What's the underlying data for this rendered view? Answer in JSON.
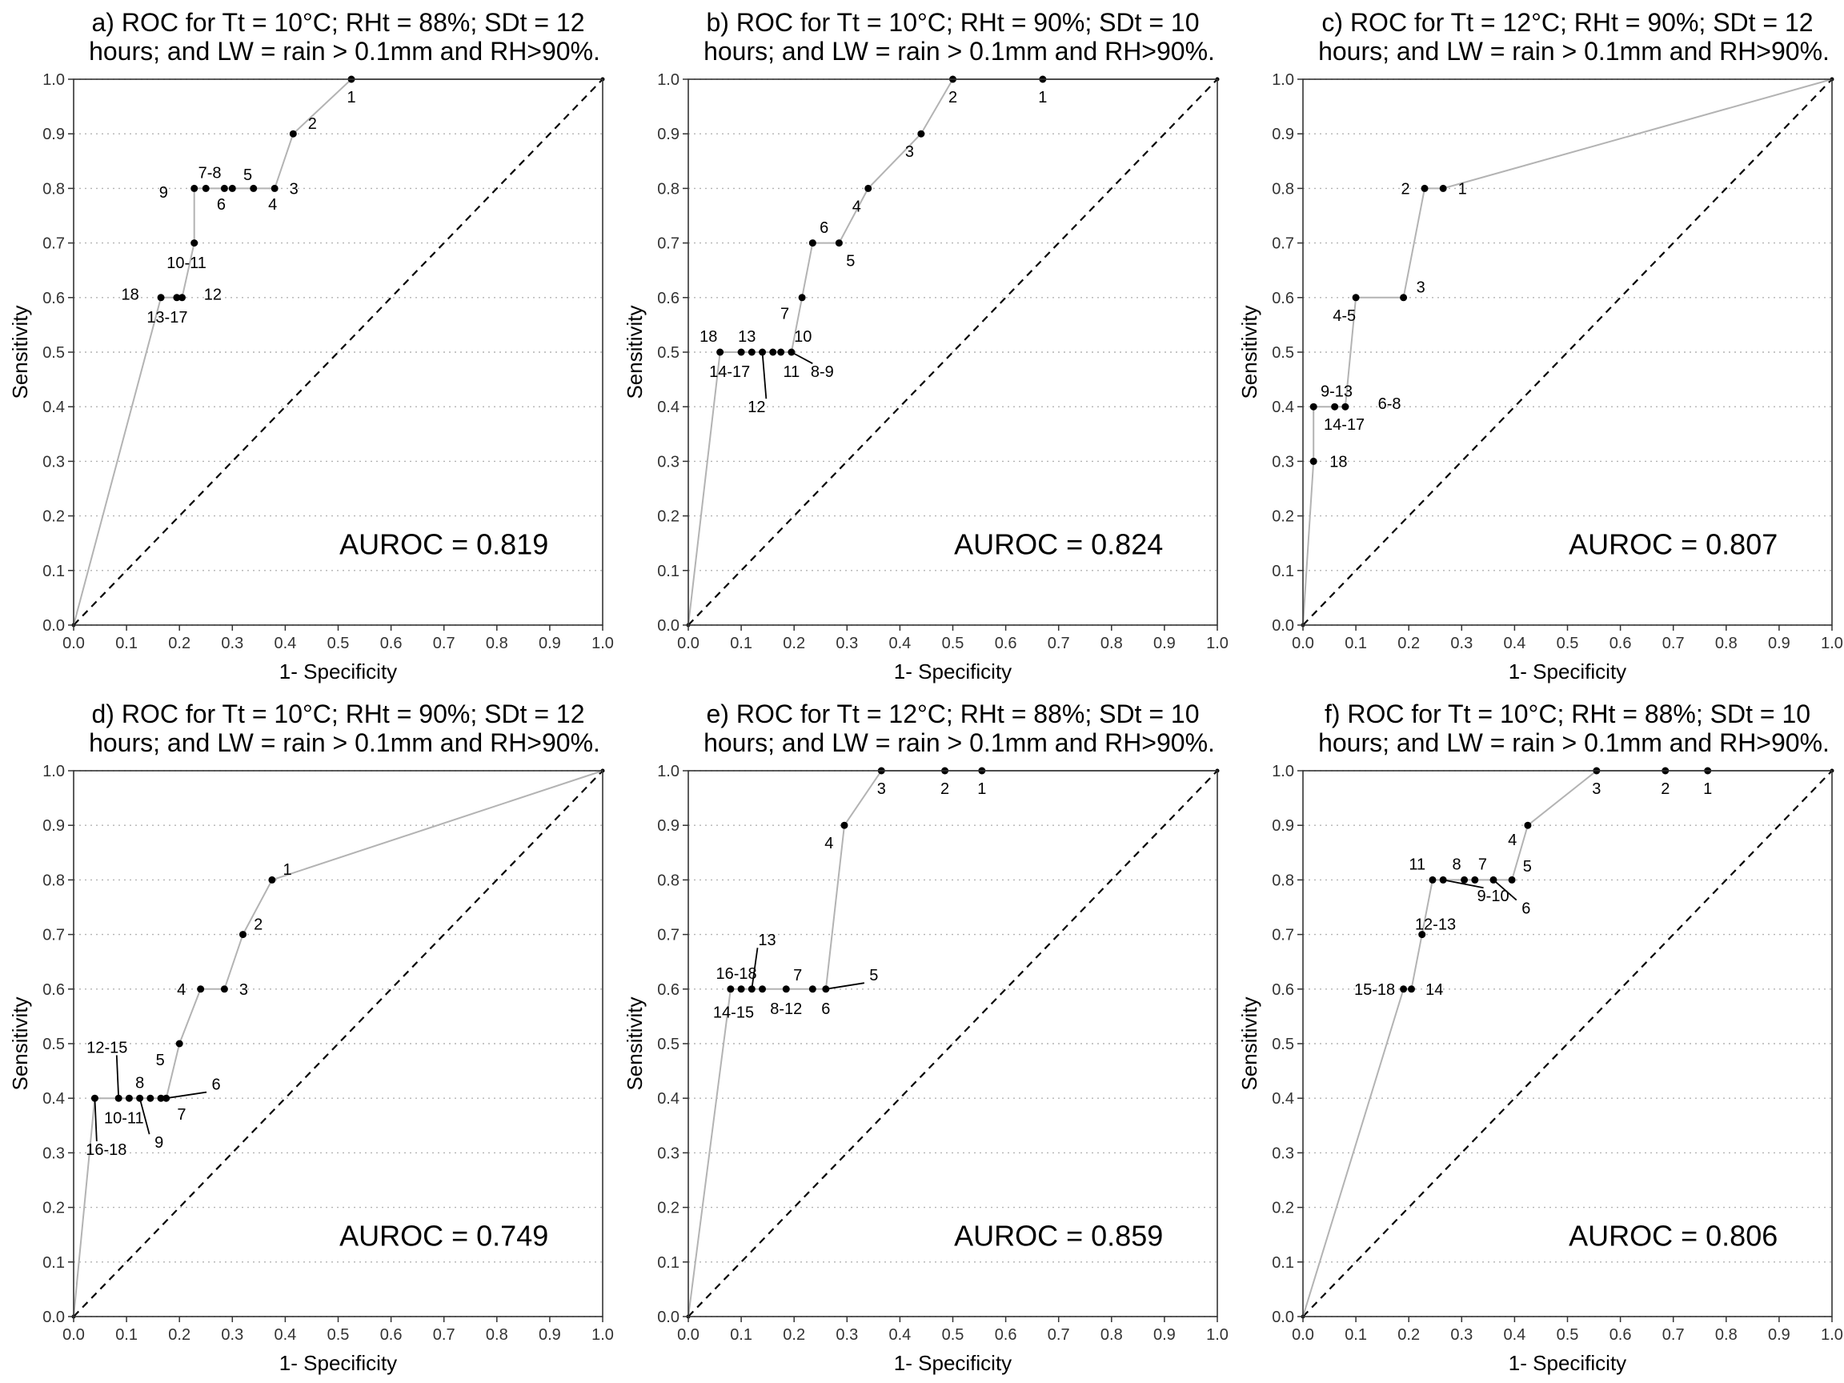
{
  "chart_data": [
    {
      "type": "line",
      "title_line1": "a) ROC for Tt = 10°C; RHt = 88%; SDt = 12",
      "title_line2": "hours; and LW = rain > 0.1mm and RH>90%.",
      "xlabel": "1- Specificity",
      "ylabel": "Sensitivity",
      "xlim": [
        0,
        1
      ],
      "ylim": [
        0,
        1
      ],
      "ticks": [
        "0.0",
        "0.1",
        "0.2",
        "0.3",
        "0.4",
        "0.5",
        "0.6",
        "0.7",
        "0.8",
        "0.9",
        "1.0"
      ],
      "auroc_label": "AUROC = 0.819",
      "grid": "horizontal dotted",
      "curve": [
        [
          0,
          0
        ],
        [
          0.165,
          0.6
        ],
        [
          0.195,
          0.6
        ],
        [
          0.205,
          0.6
        ],
        [
          0.228,
          0.7
        ],
        [
          0.228,
          0.8
        ],
        [
          0.25,
          0.8
        ],
        [
          0.285,
          0.8
        ],
        [
          0.3,
          0.8
        ],
        [
          0.34,
          0.8
        ],
        [
          0.38,
          0.8
        ],
        [
          0.415,
          0.9
        ],
        [
          0.525,
          1.0
        ],
        [
          1,
          1
        ]
      ],
      "labels": [
        {
          "text": "1",
          "x": 0.525,
          "y": 1.0,
          "dx": 0,
          "dy": 1
        },
        {
          "text": "2",
          "x": 0.415,
          "y": 0.9,
          "dx": 1,
          "dy": -0.6
        },
        {
          "text": "3",
          "x": 0.38,
          "y": 0.8,
          "dx": 1,
          "dy": 0
        },
        {
          "text": "4",
          "x": 0.34,
          "y": 0.8,
          "dx": 1,
          "dy": 0.9
        },
        {
          "text": "5",
          "x": 0.3,
          "y": 0.8,
          "dx": 0.8,
          "dy": -0.8
        },
        {
          "text": "6",
          "x": 0.25,
          "y": 0.8,
          "dx": 0.8,
          "dy": 0.9
        },
        {
          "text": "7-8",
          "x": 0.25,
          "y": 0.8,
          "dx": 0.2,
          "dy": -0.9
        },
        {
          "text": "9",
          "x": 0.228,
          "y": 0.8,
          "dx": -1.6,
          "dy": 0.2
        },
        {
          "text": "10-11",
          "x": 0.228,
          "y": 0.7,
          "dx": -0.4,
          "dy": 1.1
        },
        {
          "text": "12",
          "x": 0.205,
          "y": 0.6,
          "dx": 1.6,
          "dy": -0.2
        },
        {
          "text": "13-17",
          "x": 0.195,
          "y": 0.6,
          "dx": -0.5,
          "dy": 1.1
        },
        {
          "text": "18",
          "x": 0.165,
          "y": 0.6,
          "dx": -1.6,
          "dy": -0.2
        }
      ]
    },
    {
      "type": "line",
      "title_line1": "b) ROC for Tt = 10°C; RHt = 90%; SDt = 10",
      "title_line2": "hours; and LW = rain > 0.1mm and RH>90%.",
      "xlabel": "1- Specificity",
      "ylabel": "Sensitivity",
      "xlim": [
        0,
        1
      ],
      "ylim": [
        0,
        1
      ],
      "ticks": [
        "0.0",
        "0.1",
        "0.2",
        "0.3",
        "0.4",
        "0.5",
        "0.6",
        "0.7",
        "0.8",
        "0.9",
        "1.0"
      ],
      "auroc_label": "AUROC = 0.824",
      "grid": "horizontal dotted",
      "curve": [
        [
          0,
          0
        ],
        [
          0.06,
          0.5
        ],
        [
          0.1,
          0.5
        ],
        [
          0.12,
          0.5
        ],
        [
          0.14,
          0.5
        ],
        [
          0.16,
          0.5
        ],
        [
          0.175,
          0.5
        ],
        [
          0.195,
          0.5
        ],
        [
          0.215,
          0.6
        ],
        [
          0.235,
          0.7
        ],
        [
          0.285,
          0.7
        ],
        [
          0.34,
          0.8
        ],
        [
          0.44,
          0.9
        ],
        [
          0.5,
          1.0
        ],
        [
          0.67,
          1.0
        ],
        [
          1,
          1
        ]
      ],
      "labels": [
        {
          "text": "1",
          "x": 0.67,
          "y": 1.0,
          "dx": 0,
          "dy": 1
        },
        {
          "text": "2",
          "x": 0.5,
          "y": 1.0,
          "dx": 0,
          "dy": 1
        },
        {
          "text": "3",
          "x": 0.44,
          "y": 0.9,
          "dx": -0.6,
          "dy": 1
        },
        {
          "text": "4",
          "x": 0.34,
          "y": 0.8,
          "dx": -0.6,
          "dy": 1
        },
        {
          "text": "5",
          "x": 0.285,
          "y": 0.7,
          "dx": 0.6,
          "dy": 1
        },
        {
          "text": "6",
          "x": 0.235,
          "y": 0.7,
          "dx": 0.6,
          "dy": -0.9
        },
        {
          "text": "7",
          "x": 0.215,
          "y": 0.6,
          "dx": -0.9,
          "dy": 0.9
        },
        {
          "text": "10",
          "x": 0.195,
          "y": 0.5,
          "dx": 0.6,
          "dy": -0.9
        },
        {
          "text": "11",
          "x": 0.195,
          "y": 0.5,
          "dx": 0,
          "dy": 1.1
        },
        {
          "text": "8-9",
          "x": 0.195,
          "y": 0.5,
          "dx": 1.6,
          "dy": 1.1,
          "leader": true
        },
        {
          "text": "12",
          "x": 0.14,
          "y": 0.5,
          "dx": -0.3,
          "dy": 3.1,
          "leader": true
        },
        {
          "text": "13",
          "x": 0.1,
          "y": 0.5,
          "dx": 0.3,
          "dy": -0.9
        },
        {
          "text": "14-17",
          "x": 0.1,
          "y": 0.5,
          "dx": -0.6,
          "dy": 1.1
        },
        {
          "text": "18",
          "x": 0.06,
          "y": 0.5,
          "dx": -0.6,
          "dy": -0.9
        }
      ]
    },
    {
      "type": "line",
      "title_line1": "c) ROC for Tt = 12°C; RHt = 90%; SDt = 12",
      "title_line2": "hours; and LW = rain > 0.1mm and RH>90%.",
      "xlabel": "1- Specificity",
      "ylabel": "Sensitivity",
      "xlim": [
        0,
        1
      ],
      "ylim": [
        0,
        1
      ],
      "ticks": [
        "0.0",
        "0.1",
        "0.2",
        "0.3",
        "0.4",
        "0.5",
        "0.6",
        "0.7",
        "0.8",
        "0.9",
        "1.0"
      ],
      "auroc_label": "AUROC = 0.807",
      "grid": "horizontal dotted",
      "curve": [
        [
          0,
          0
        ],
        [
          0.02,
          0.3
        ],
        [
          0.02,
          0.4
        ],
        [
          0.06,
          0.4
        ],
        [
          0.08,
          0.4
        ],
        [
          0.1,
          0.6
        ],
        [
          0.19,
          0.6
        ],
        [
          0.23,
          0.8
        ],
        [
          0.265,
          0.8
        ],
        [
          1,
          1
        ]
      ],
      "labels": [
        {
          "text": "1",
          "x": 0.265,
          "y": 0.8,
          "dx": 1,
          "dy": 0
        },
        {
          "text": "2",
          "x": 0.23,
          "y": 0.8,
          "dx": -1,
          "dy": 0
        },
        {
          "text": "3",
          "x": 0.19,
          "y": 0.6,
          "dx": 0.9,
          "dy": -0.6
        },
        {
          "text": "4-5",
          "x": 0.1,
          "y": 0.6,
          "dx": -0.6,
          "dy": 1
        },
        {
          "text": "6-8",
          "x": 0.08,
          "y": 0.4,
          "dx": 2.3,
          "dy": -0.2
        },
        {
          "text": "9-13",
          "x": 0.02,
          "y": 0.4,
          "dx": 1.2,
          "dy": -0.9
        },
        {
          "text": "14-17",
          "x": 0.02,
          "y": 0.4,
          "dx": 1.6,
          "dy": 1
        },
        {
          "text": "18",
          "x": 0.02,
          "y": 0.3,
          "dx": 1.3,
          "dy": 0
        }
      ]
    },
    {
      "type": "line",
      "title_line1": "d) ROC for Tt = 10°C; RHt = 90%; SDt = 12",
      "title_line2": "hours; and LW = rain > 0.1mm and RH>90%.",
      "xlabel": "1- Specificity",
      "ylabel": "Sensitivity",
      "xlim": [
        0,
        1
      ],
      "ylim": [
        0,
        1
      ],
      "ticks": [
        "0.0",
        "0.1",
        "0.2",
        "0.3",
        "0.4",
        "0.5",
        "0.6",
        "0.7",
        "0.8",
        "0.9",
        "1.0"
      ],
      "auroc_label": "AUROC = 0.749",
      "grid": "horizontal dotted",
      "curve": [
        [
          0,
          0
        ],
        [
          0.04,
          0.4
        ],
        [
          0.085,
          0.4
        ],
        [
          0.105,
          0.4
        ],
        [
          0.125,
          0.4
        ],
        [
          0.145,
          0.4
        ],
        [
          0.165,
          0.4
        ],
        [
          0.175,
          0.4
        ],
        [
          0.2,
          0.5
        ],
        [
          0.24,
          0.6
        ],
        [
          0.285,
          0.6
        ],
        [
          0.32,
          0.7
        ],
        [
          0.375,
          0.8
        ],
        [
          1,
          1
        ]
      ],
      "labels": [
        {
          "text": "1",
          "x": 0.375,
          "y": 0.8,
          "dx": 0.8,
          "dy": -0.6
        },
        {
          "text": "2",
          "x": 0.32,
          "y": 0.7,
          "dx": 0.8,
          "dy": -0.6
        },
        {
          "text": "3",
          "x": 0.285,
          "y": 0.6,
          "dx": 1,
          "dy": 0
        },
        {
          "text": "4",
          "x": 0.24,
          "y": 0.6,
          "dx": -1,
          "dy": 0
        },
        {
          "text": "5",
          "x": 0.2,
          "y": 0.5,
          "dx": -1,
          "dy": 0.9
        },
        {
          "text": "6",
          "x": 0.175,
          "y": 0.4,
          "dx": 2.6,
          "dy": -0.8,
          "leader": true
        },
        {
          "text": "7",
          "x": 0.175,
          "y": 0.4,
          "dx": 0.8,
          "dy": 0.9
        },
        {
          "text": "8",
          "x": 0.125,
          "y": 0.4,
          "dx": 0,
          "dy": -0.9
        },
        {
          "text": "9",
          "x": 0.125,
          "y": 0.4,
          "dx": 1,
          "dy": 2.5,
          "leader": true
        },
        {
          "text": "10-11",
          "x": 0.095,
          "y": 0.4,
          "dx": 0,
          "dy": 1.1
        },
        {
          "text": "12-15",
          "x": 0.085,
          "y": 0.4,
          "dx": -0.6,
          "dy": -2.9,
          "leader": true
        },
        {
          "text": "16-18",
          "x": 0.04,
          "y": 0.4,
          "dx": 0.6,
          "dy": 2.9,
          "leader": true
        }
      ]
    },
    {
      "type": "line",
      "title_line1": "e) ROC for Tt = 12°C; RHt = 88%; SDt = 10",
      "title_line2": "hours; and LW = rain > 0.1mm and RH>90%.",
      "xlabel": "1- Specificity",
      "ylabel": "Sensitivity",
      "xlim": [
        0,
        1
      ],
      "ylim": [
        0,
        1
      ],
      "ticks": [
        "0.0",
        "0.1",
        "0.2",
        "0.3",
        "0.4",
        "0.5",
        "0.6",
        "0.7",
        "0.8",
        "0.9",
        "1.0"
      ],
      "auroc_label": "AUROC = 0.859",
      "grid": "horizontal dotted",
      "curve": [
        [
          0,
          0
        ],
        [
          0.08,
          0.6
        ],
        [
          0.1,
          0.6
        ],
        [
          0.12,
          0.6
        ],
        [
          0.14,
          0.6
        ],
        [
          0.185,
          0.6
        ],
        [
          0.235,
          0.6
        ],
        [
          0.26,
          0.6
        ],
        [
          0.295,
          0.9
        ],
        [
          0.365,
          1.0
        ],
        [
          0.485,
          1.0
        ],
        [
          0.555,
          1.0
        ],
        [
          1,
          1
        ]
      ],
      "labels": [
        {
          "text": "1",
          "x": 0.555,
          "y": 1.0,
          "dx": 0,
          "dy": 1
        },
        {
          "text": "2",
          "x": 0.485,
          "y": 1.0,
          "dx": 0,
          "dy": 1
        },
        {
          "text": "3",
          "x": 0.365,
          "y": 1.0,
          "dx": 0,
          "dy": 1
        },
        {
          "text": "4",
          "x": 0.295,
          "y": 0.9,
          "dx": -0.8,
          "dy": 1
        },
        {
          "text": "5",
          "x": 0.26,
          "y": 0.6,
          "dx": 2.5,
          "dy": -0.8,
          "leader": true
        },
        {
          "text": "6",
          "x": 0.26,
          "y": 0.6,
          "dx": 0,
          "dy": 1.1
        },
        {
          "text": "7",
          "x": 0.185,
          "y": 0.6,
          "dx": 0.6,
          "dy": -0.8
        },
        {
          "text": "8-12",
          "x": 0.185,
          "y": 0.6,
          "dx": 0,
          "dy": 1.1
        },
        {
          "text": "13",
          "x": 0.12,
          "y": 0.6,
          "dx": 0.8,
          "dy": -2.8,
          "leader": true
        },
        {
          "text": "14-15",
          "x": 0.1,
          "y": 0.6,
          "dx": -0.4,
          "dy": 1.3
        },
        {
          "text": "16-18",
          "x": 0.08,
          "y": 0.6,
          "dx": 0.3,
          "dy": -0.9
        }
      ]
    },
    {
      "type": "line",
      "title_line1": "f) ROC for Tt = 10°C; RHt = 88%; SDt = 10",
      "title_line2": "hours; and LW = rain > 0.1mm and RH>90%.",
      "xlabel": "1- Specificity",
      "ylabel": "Sensitivity",
      "xlim": [
        0,
        1
      ],
      "ylim": [
        0,
        1
      ],
      "ticks": [
        "0.0",
        "0.1",
        "0.2",
        "0.3",
        "0.4",
        "0.5",
        "0.6",
        "0.7",
        "0.8",
        "0.9",
        "1.0"
      ],
      "auroc_label": "AUROC = 0.806",
      "grid": "horizontal dotted",
      "curve": [
        [
          0,
          0
        ],
        [
          0.19,
          0.6
        ],
        [
          0.205,
          0.6
        ],
        [
          0.225,
          0.7
        ],
        [
          0.245,
          0.8
        ],
        [
          0.265,
          0.8
        ],
        [
          0.305,
          0.8
        ],
        [
          0.325,
          0.8
        ],
        [
          0.36,
          0.8
        ],
        [
          0.395,
          0.8
        ],
        [
          0.425,
          0.9
        ],
        [
          0.555,
          1.0
        ],
        [
          0.685,
          1.0
        ],
        [
          0.765,
          1.0
        ],
        [
          1,
          1
        ]
      ],
      "labels": [
        {
          "text": "1",
          "x": 0.765,
          "y": 1.0,
          "dx": 0,
          "dy": 1
        },
        {
          "text": "2",
          "x": 0.685,
          "y": 1.0,
          "dx": 0,
          "dy": 1
        },
        {
          "text": "3",
          "x": 0.555,
          "y": 1.0,
          "dx": 0,
          "dy": 1
        },
        {
          "text": "4",
          "x": 0.425,
          "y": 0.9,
          "dx": -0.8,
          "dy": 0.8
        },
        {
          "text": "5",
          "x": 0.395,
          "y": 0.8,
          "dx": 0.8,
          "dy": -0.8
        },
        {
          "text": "6",
          "x": 0.36,
          "y": 0.8,
          "dx": 1.7,
          "dy": 1.6,
          "leader": true
        },
        {
          "text": "7",
          "x": 0.325,
          "y": 0.8,
          "dx": 0.4,
          "dy": -0.9
        },
        {
          "text": "8",
          "x": 0.305,
          "y": 0.8,
          "dx": -0.4,
          "dy": -0.9
        },
        {
          "text": "9-10",
          "x": 0.265,
          "y": 0.8,
          "dx": 2.6,
          "dy": 0.9,
          "leader": true
        },
        {
          "text": "11",
          "x": 0.245,
          "y": 0.8,
          "dx": -0.8,
          "dy": -0.9
        },
        {
          "text": "12-13",
          "x": 0.225,
          "y": 0.7,
          "dx": 0.7,
          "dy": -0.6
        },
        {
          "text": "14",
          "x": 0.205,
          "y": 0.6,
          "dx": 1.2,
          "dy": 0
        },
        {
          "text": "15-18",
          "x": 0.19,
          "y": 0.6,
          "dx": -1.5,
          "dy": 0
        }
      ]
    }
  ]
}
